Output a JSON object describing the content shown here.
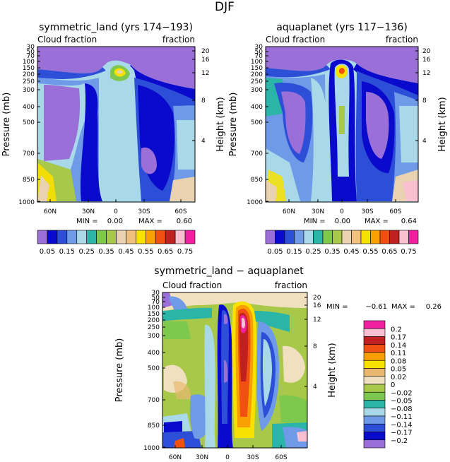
{
  "page_title": "DJF",
  "chart_data": [
    {
      "type": "contour",
      "title": "symmetric_land (yrs 174−193)",
      "left_subtitle": "Cloud fraction",
      "right_subtitle": "fraction",
      "ylabel": "Pressure (mb)",
      "ylabel_right": "Height (km)",
      "pressure_ticks": [
        "30",
        "50",
        "70",
        "100",
        "150",
        "200",
        "250",
        "300",
        "400",
        "500",
        "700",
        "850",
        "1000"
      ],
      "height_ticks": [
        "20",
        "16",
        "12",
        "8",
        "4"
      ],
      "x_ticks": [
        "60N",
        "30N",
        "0",
        "30S",
        "60S"
      ],
      "stats": {
        "min_label": "MIN =",
        "min": "0.00",
        "max_label": "MAX =",
        "max": "0.60"
      },
      "colorbar_labels": [
        "0.05",
        "0.15",
        "0.25",
        "0.35",
        "0.45",
        "0.55",
        "0.65",
        "0.75"
      ],
      "colors": [
        "#9b6fd8",
        "#0a0acc",
        "#2d4fd8",
        "#6e9ae8",
        "#a9d9e8",
        "#2bb5a8",
        "#7ec850",
        "#a8c84a",
        "#e8d2b0",
        "#f0c080",
        "#f8e000",
        "#f8a000",
        "#f05010",
        "#c02020",
        "#f8c0d0",
        "#f020a0"
      ]
    },
    {
      "type": "contour",
      "title": "aquaplanet (yrs 117−136)",
      "left_subtitle": "Cloud fraction",
      "right_subtitle": "fraction",
      "ylabel": "Pressure (mb)",
      "ylabel_right": "Height (km)",
      "pressure_ticks": [
        "30",
        "50",
        "70",
        "100",
        "150",
        "200",
        "250",
        "300",
        "400",
        "500",
        "700",
        "850",
        "1000"
      ],
      "height_ticks": [
        "20",
        "16",
        "12",
        "8",
        "4"
      ],
      "x_ticks": [
        "60N",
        "30N",
        "0",
        "30S",
        "60S"
      ],
      "stats": {
        "min_label": "MIN =",
        "min": "0.00",
        "max_label": "MAX =",
        "max": "0.64"
      },
      "colorbar_labels": [
        "0.05",
        "0.15",
        "0.25",
        "0.35",
        "0.45",
        "0.55",
        "0.65",
        "0.75"
      ]
    },
    {
      "type": "contour",
      "title": "symmetric_land − aquaplanet",
      "left_subtitle": "Cloud fraction",
      "right_subtitle": "fraction",
      "ylabel": "Pressure (mb)",
      "ylabel_right": "Height (km)",
      "pressure_ticks": [
        "30",
        "50",
        "70",
        "100",
        "150",
        "200",
        "250",
        "300",
        "400",
        "500",
        "700",
        "850",
        "1000"
      ],
      "height_ticks": [
        "20",
        "16",
        "12",
        "8",
        "4"
      ],
      "x_ticks": [
        "60N",
        "30N",
        "0",
        "30S",
        "60S"
      ],
      "stats": {
        "min_label": "MIN =",
        "min": "−0.61",
        "max_label": "MAX =",
        "max": "0.26"
      },
      "colorbar_labels": [
        "0.2",
        "0.17",
        "0.14",
        "0.11",
        "0.08",
        "0.05",
        "0.02",
        "0",
        "−0.02",
        "−0.05",
        "−0.08",
        "−0.11",
        "−0.14",
        "−0.17",
        "−0.2"
      ],
      "colors": [
        "#f020a0",
        "#f8c0d0",
        "#c02020",
        "#f05010",
        "#f8a000",
        "#f8e000",
        "#e8b870",
        "#f0e0c0",
        "#a8c84a",
        "#7ec850",
        "#2bb5a8",
        "#a9d9e8",
        "#6e9ae8",
        "#2d4fd8",
        "#0a0acc",
        "#9b6fd8"
      ]
    }
  ]
}
